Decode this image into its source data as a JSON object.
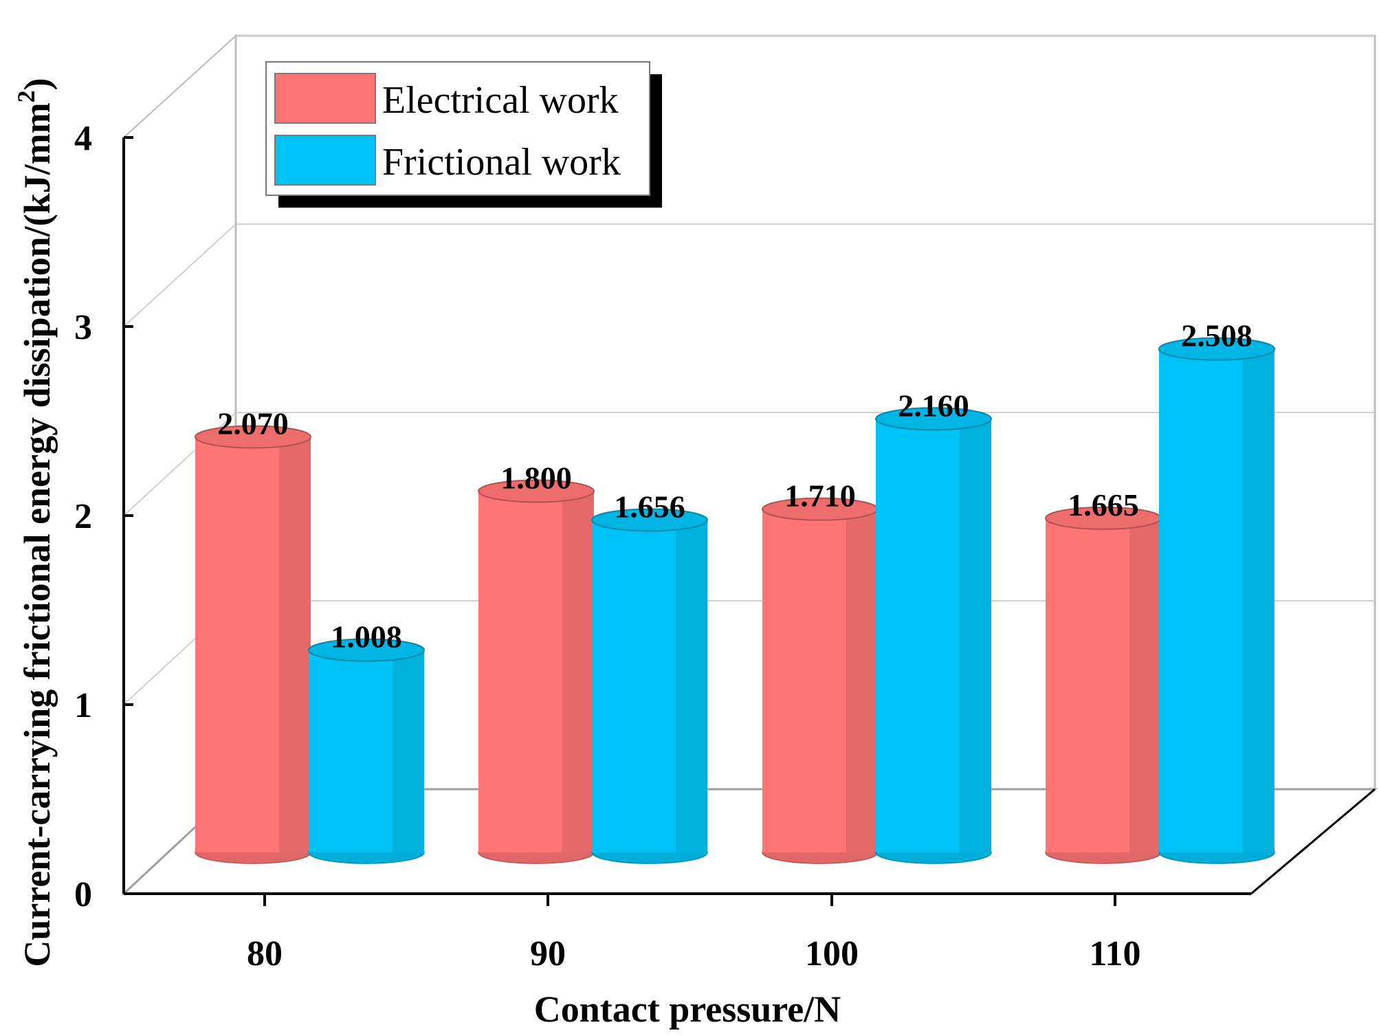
{
  "chart_data": {
    "type": "bar",
    "style": "3d-cylinder",
    "categories": [
      "80",
      "90",
      "100",
      "110"
    ],
    "series": [
      {
        "name": "Electrical work",
        "color": "#ff7575",
        "values": [
          2.07,
          1.8,
          1.71,
          1.665
        ],
        "labels": [
          "2.070",
          "1.800",
          "1.710",
          "1.665"
        ]
      },
      {
        "name": "Frictional work",
        "color": "#00c3f5",
        "values": [
          1.008,
          1.656,
          2.16,
          2.508
        ],
        "labels": [
          "1.008",
          "1.656",
          "2.160",
          "2.508"
        ]
      }
    ],
    "xlabel": "Contact pressure/N",
    "ylabel": "Current-carrying frictional energy dissipation/(kJ/mm",
    "ylabel_superscript": "2",
    "ylabel_suffix": ")",
    "ylim": [
      0,
      4
    ],
    "yticks": [
      "0",
      "1",
      "2",
      "3",
      "4"
    ],
    "grid": true,
    "legend_position": "top-left"
  }
}
